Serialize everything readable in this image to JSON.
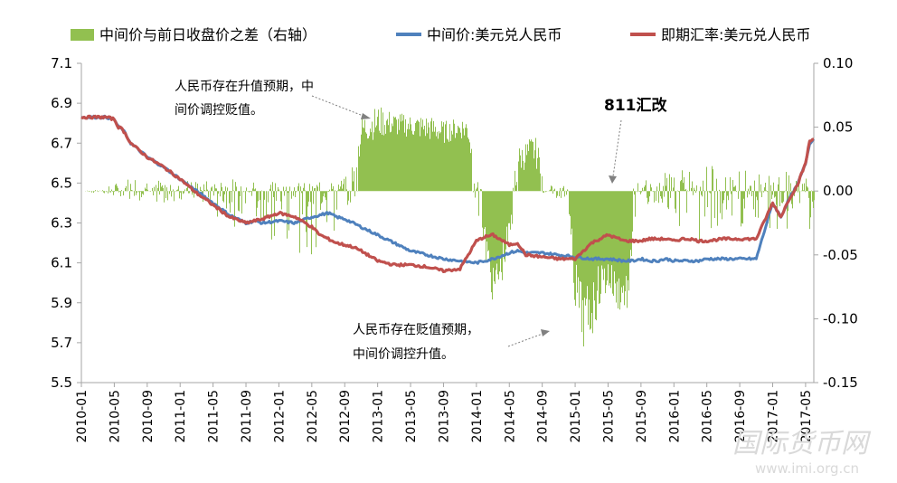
{
  "chart_data": {
    "type": "line+bar",
    "legend": {
      "placement": "top",
      "items": [
        {
          "label": "中间价与前日收盘价之差（右轴）",
          "color": "#92c050",
          "kind": "bar"
        },
        {
          "label": "中间价:美元兑人民币",
          "color": "#4f81bd",
          "kind": "line"
        },
        {
          "label": "即期汇率:美元兑人民币",
          "color": "#c0504d",
          "kind": "line"
        }
      ]
    },
    "left_axis": {
      "ticks": [
        "7.1",
        "6.9",
        "6.7",
        "6.5",
        "6.3",
        "6.1",
        "5.9",
        "5.7",
        "5.5"
      ],
      "min": 5.5,
      "max": 7.1
    },
    "right_axis": {
      "ticks": [
        "0.10",
        "0.05",
        "0.00",
        "-0.05",
        "-0.10",
        "-0.15"
      ],
      "min": -0.15,
      "max": 0.1
    },
    "x_ticks": [
      "2010-01",
      "2010-05",
      "2010-09",
      "2011-01",
      "2011-05",
      "2011-09",
      "2012-01",
      "2012-05",
      "2012-09",
      "2013-01",
      "2013-05",
      "2013-09",
      "2014-01",
      "2014-05",
      "2014-09",
      "2015-01",
      "2015-05",
      "2015-09",
      "2016-01",
      "2016-05",
      "2016-09",
      "2017-01",
      "2017-05"
    ],
    "series": [
      {
        "name": "中间价:美元兑人民币",
        "x": [
          0,
          3,
          4,
          4.5,
          5,
          6,
          8,
          10,
          12,
          14,
          16,
          18,
          20,
          21,
          22,
          24,
          26,
          28,
          29,
          30,
          31,
          32,
          33,
          34,
          36,
          38,
          40,
          42,
          44,
          46,
          48,
          49,
          50,
          52,
          53,
          54,
          56,
          58,
          60,
          62,
          64,
          66,
          67,
          68,
          69,
          70,
          71,
          72,
          73,
          74,
          75,
          76,
          78,
          80,
          82,
          84,
          85,
          86,
          87,
          88,
          88.5,
          89
        ],
        "y": [
          6.83,
          6.83,
          6.82,
          6.78,
          6.77,
          6.7,
          6.63,
          6.58,
          6.52,
          6.46,
          6.4,
          6.34,
          6.3,
          6.31,
          6.3,
          6.31,
          6.3,
          6.33,
          6.34,
          6.35,
          6.33,
          6.32,
          6.3,
          6.28,
          6.24,
          6.2,
          6.16,
          6.14,
          6.12,
          6.11,
          6.1,
          6.11,
          6.12,
          6.15,
          6.16,
          6.15,
          6.15,
          6.14,
          6.13,
          6.12,
          6.12,
          6.11,
          6.11,
          6.12,
          6.11,
          6.11,
          6.12,
          6.11,
          6.11,
          6.11,
          6.11,
          6.12,
          6.12,
          6.12,
          6.12,
          6.4,
          6.33,
          6.42,
          6.49,
          6.6,
          6.7,
          6.72
        ]
      },
      {
        "name": "即期汇率:美元兑人民币",
        "x": [
          0,
          3,
          4,
          4.5,
          5,
          6,
          8,
          10,
          12,
          14,
          16,
          18,
          20,
          21,
          22,
          24,
          26,
          28,
          29,
          30,
          31,
          32,
          33,
          34,
          36,
          38,
          40,
          42,
          44,
          46,
          48,
          49,
          50,
          52,
          53,
          54,
          56,
          58,
          60,
          62,
          64,
          66,
          67,
          68,
          69,
          70,
          71,
          72,
          73,
          74,
          75,
          76,
          78,
          80,
          82,
          84,
          85,
          86,
          87,
          88,
          88.5,
          89
        ],
        "y": [
          6.83,
          6.83,
          6.82,
          6.78,
          6.77,
          6.7,
          6.63,
          6.58,
          6.52,
          6.45,
          6.39,
          6.33,
          6.3,
          6.31,
          6.32,
          6.35,
          6.33,
          6.28,
          6.24,
          6.22,
          6.2,
          6.19,
          6.18,
          6.16,
          6.11,
          6.09,
          6.09,
          6.08,
          6.06,
          6.07,
          6.21,
          6.23,
          6.24,
          6.19,
          6.2,
          6.14,
          6.13,
          6.12,
          6.12,
          6.2,
          6.24,
          6.21,
          6.21,
          6.21,
          6.22,
          6.22,
          6.22,
          6.21,
          6.22,
          6.22,
          6.21,
          6.21,
          6.22,
          6.22,
          6.22,
          6.4,
          6.33,
          6.42,
          6.49,
          6.6,
          6.71,
          6.72
        ]
      }
    ],
    "annotations": [
      {
        "text_lines": [
          "人民币存在升值预期，中",
          "间价调控贬值。"
        ]
      },
      {
        "text_lines": [
          "811汇改"
        ],
        "bold": true
      },
      {
        "text_lines": [
          "人民币存在贬值预期，",
          "中间价调控升值。"
        ]
      }
    ]
  },
  "watermark": {
    "logo_text": "国际货币网",
    "url": "www.imi.org.cn"
  }
}
